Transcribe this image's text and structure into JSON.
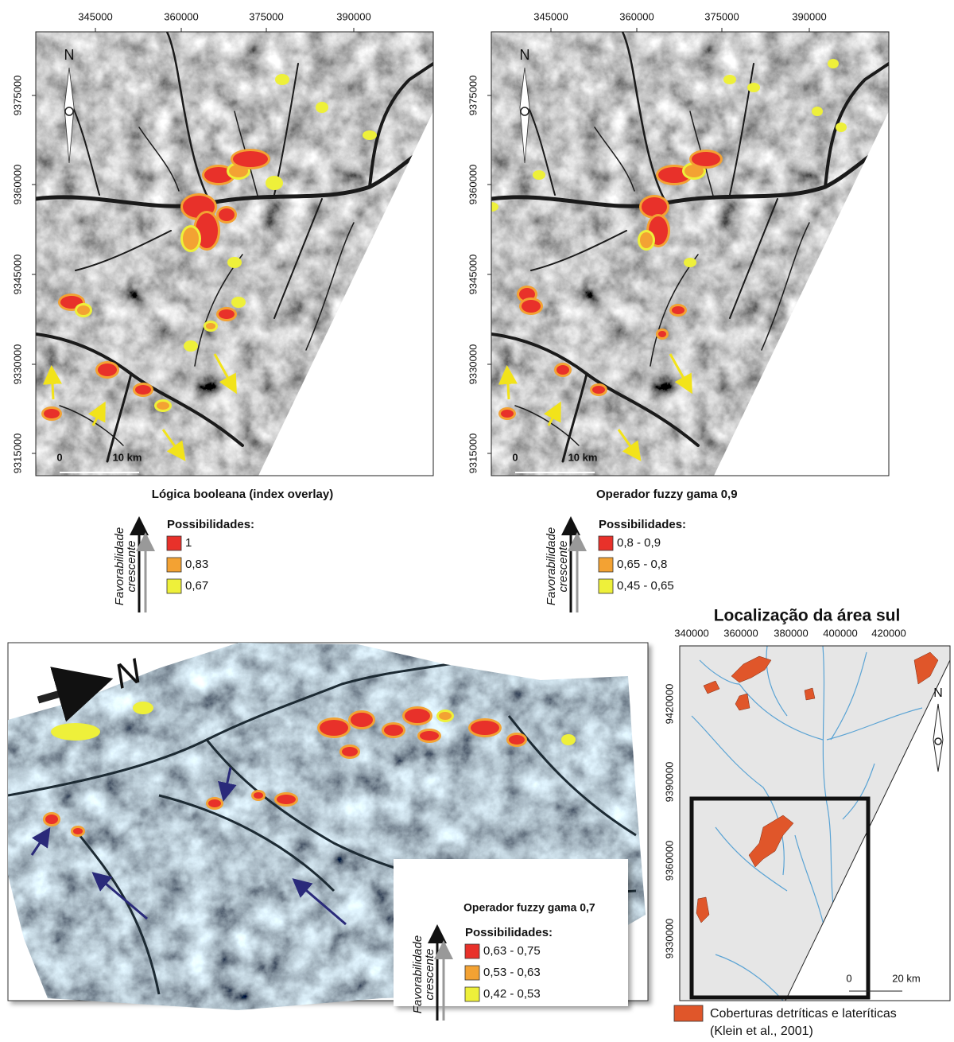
{
  "panels": [
    {
      "x_ticks": [
        "345000",
        "360000",
        "375000",
        "390000"
      ],
      "y_ticks": [
        "9375000",
        "9360000",
        "9345000",
        "9330000",
        "9315000"
      ],
      "north": "N",
      "scale_start": "0",
      "scale_end": "10 km",
      "title": "Lógica booleana (index overlay)",
      "legend": {
        "axis_label": [
          "Favorabilidade",
          "crescente"
        ],
        "heading": "Possibilidades:",
        "items": [
          {
            "label": "1",
            "color": "#e8312a"
          },
          {
            "label": "0,83",
            "color": "#f3a233"
          },
          {
            "label": "0,67",
            "color": "#eef03a"
          }
        ]
      }
    },
    {
      "x_ticks": [
        "345000",
        "360000",
        "375000",
        "390000"
      ],
      "y_ticks": [
        "9375000",
        "9360000",
        "9345000",
        "9330000",
        "9315000"
      ],
      "north": "N",
      "scale_start": "0",
      "scale_end": "10 km",
      "title": "Operador fuzzy gama 0,9",
      "legend": {
        "axis_label": [
          "Favorabilidade",
          "crescente"
        ],
        "heading": "Possibilidades:",
        "items": [
          {
            "label": "0,8 - 0,9",
            "color": "#e8312a"
          },
          {
            "label": "0,65 - 0,8",
            "color": "#f3a233"
          },
          {
            "label": "0,45 - 0,65",
            "color": "#eef03a"
          }
        ]
      }
    },
    {
      "north": "N",
      "title": "Operador fuzzy gama 0,7",
      "legend": {
        "axis_label": [
          "Favorabilidade",
          "crescente"
        ],
        "heading": "Possibilidades:",
        "items": [
          {
            "label": "0,63 - 0,75",
            "color": "#e8312a"
          },
          {
            "label": "0,53 - 0,63",
            "color": "#f3a233"
          },
          {
            "label": "0,42 - 0,53",
            "color": "#eef03a"
          }
        ]
      }
    },
    {
      "title": "Localização da área sul",
      "x_ticks": [
        "340000",
        "360000",
        "380000",
        "400000",
        "420000"
      ],
      "y_ticks": [
        "9420000",
        "9390000",
        "9360000",
        "9330000"
      ],
      "north": "N",
      "scale_start": "0",
      "scale_end": "20 km",
      "legend": {
        "label": [
          "Coberturas detríticas e lateríticas",
          "(Klein et al., 2001)"
        ],
        "color": "#e0562a"
      }
    }
  ]
}
